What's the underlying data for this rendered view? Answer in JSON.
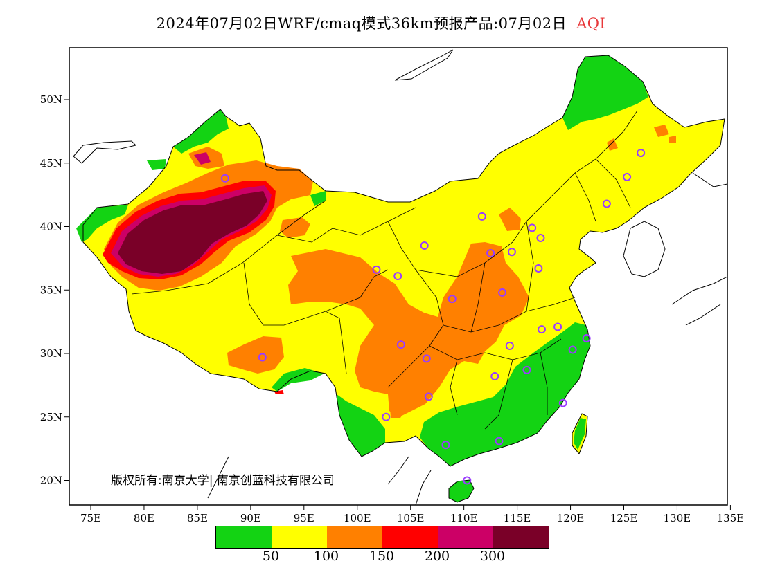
{
  "title": {
    "text": "2024年07月02日WRF/cmaq模式36km预报产品:07月02日",
    "variable": "AQI"
  },
  "copyright": "版权所有:南京大学| 南京创蓝科技有限公司",
  "axes": {
    "lon_ticks": [
      "75E",
      "80E",
      "85E",
      "90E",
      "95E",
      "100E",
      "105E",
      "110E",
      "115E",
      "120E",
      "125E",
      "130E",
      "135E"
    ],
    "lat_ticks": [
      "50N",
      "45N",
      "40N",
      "35N",
      "30N",
      "25N",
      "20N"
    ],
    "lon_range": [
      73,
      135
    ],
    "lat_range": [
      18,
      54
    ]
  },
  "legend": {
    "colors": [
      "#13d313",
      "#ffff00",
      "#ff8000",
      "#ff0000",
      "#cc0066",
      "#7a0028"
    ],
    "labels": [
      "50",
      "100",
      "150",
      "200",
      "300"
    ]
  },
  "colors": {
    "good": "#13d313",
    "moderate": "#ffff00",
    "sensitive": "#ff8000",
    "unhealthy": "#ff0000",
    "very_unhealthy": "#cc0066",
    "hazardous": "#7a0028",
    "city_marker": "#9a3cff"
  },
  "city_markers": [
    {
      "lon": 87.6,
      "lat": 43.8
    },
    {
      "lon": 126.6,
      "lat": 45.8
    },
    {
      "lon": 125.3,
      "lat": 43.9
    },
    {
      "lon": 123.4,
      "lat": 41.8
    },
    {
      "lon": 111.7,
      "lat": 40.8
    },
    {
      "lon": 116.4,
      "lat": 39.9
    },
    {
      "lon": 117.2,
      "lat": 39.1
    },
    {
      "lon": 106.3,
      "lat": 38.5
    },
    {
      "lon": 112.5,
      "lat": 37.9
    },
    {
      "lon": 114.5,
      "lat": 38.0
    },
    {
      "lon": 117.0,
      "lat": 36.7
    },
    {
      "lon": 101.8,
      "lat": 36.6
    },
    {
      "lon": 103.8,
      "lat": 36.1
    },
    {
      "lon": 108.9,
      "lat": 34.3
    },
    {
      "lon": 113.6,
      "lat": 34.8
    },
    {
      "lon": 117.3,
      "lat": 31.9
    },
    {
      "lon": 118.8,
      "lat": 32.1
    },
    {
      "lon": 121.5,
      "lat": 31.2
    },
    {
      "lon": 120.2,
      "lat": 30.3
    },
    {
      "lon": 114.3,
      "lat": 30.6
    },
    {
      "lon": 104.1,
      "lat": 30.7
    },
    {
      "lon": 106.5,
      "lat": 29.6
    },
    {
      "lon": 91.1,
      "lat": 29.7
    },
    {
      "lon": 112.9,
      "lat": 28.2
    },
    {
      "lon": 115.9,
      "lat": 28.7
    },
    {
      "lon": 106.7,
      "lat": 26.6
    },
    {
      "lon": 119.3,
      "lat": 26.1
    },
    {
      "lon": 102.7,
      "lat": 25.0
    },
    {
      "lon": 113.3,
      "lat": 23.1
    },
    {
      "lon": 108.3,
      "lat": 22.8
    },
    {
      "lon": 110.3,
      "lat": 20.0
    }
  ]
}
